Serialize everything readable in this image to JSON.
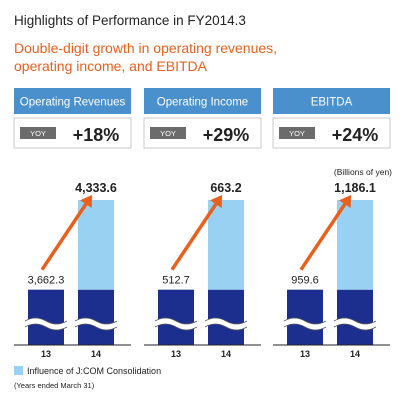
{
  "title": "Highlights of Performance in FY2014.3",
  "subtitle_line1": "Double-digit growth in operating revenues,",
  "subtitle_line2": "operating income, and EBITDA",
  "unit_label": "(Billions of yen)",
  "legend_label": "Influence of J:COM Consolidation",
  "footnote": "(Years ended March 31)",
  "colors": {
    "title": "#222222",
    "subtitle": "#e8601c",
    "header_bg": "#4a90cc",
    "yoy_badge": "#6b6b6b",
    "bar_base": "#1c2f8f",
    "bar_jcom": "#99d1f2",
    "arrow": "#e8601c",
    "baseline": "#222222"
  },
  "chart_data": [
    {
      "type": "bar",
      "panel_title": "Operating Revenues",
      "yoy_label": "YOY",
      "yoy_value": "+18%",
      "categories": [
        "13",
        "14"
      ],
      "labels": [
        "3,662.3",
        "4,333.6"
      ],
      "series": [
        {
          "name": "",
          "values": [
            3662.3,
            3662.3
          ]
        },
        {
          "name": "Influence of J:COM Consolidation",
          "values": [
            0,
            671.3
          ]
        }
      ],
      "totals": [
        3662.3,
        4333.6
      ],
      "axis_break": true
    },
    {
      "type": "bar",
      "panel_title": "Operating Income",
      "yoy_label": "YOY",
      "yoy_value": "+29%",
      "categories": [
        "13",
        "14"
      ],
      "labels": [
        "512.7",
        "663.2"
      ],
      "series": [
        {
          "name": "",
          "values": [
            512.7,
            512.7
          ]
        },
        {
          "name": "Influence of J:COM Consolidation",
          "values": [
            0,
            150.5
          ]
        }
      ],
      "totals": [
        512.7,
        663.2
      ],
      "axis_break": true
    },
    {
      "type": "bar",
      "panel_title": "EBITDA",
      "yoy_label": "YOY",
      "yoy_value": "+24%",
      "categories": [
        "13",
        "14"
      ],
      "labels": [
        "959.6",
        "1,186.1"
      ],
      "series": [
        {
          "name": "",
          "values": [
            959.6,
            959.6
          ]
        },
        {
          "name": "Influence of J:COM Consolidation",
          "values": [
            0,
            226.5
          ]
        }
      ],
      "totals": [
        959.6,
        1186.1
      ],
      "axis_break": true
    }
  ]
}
